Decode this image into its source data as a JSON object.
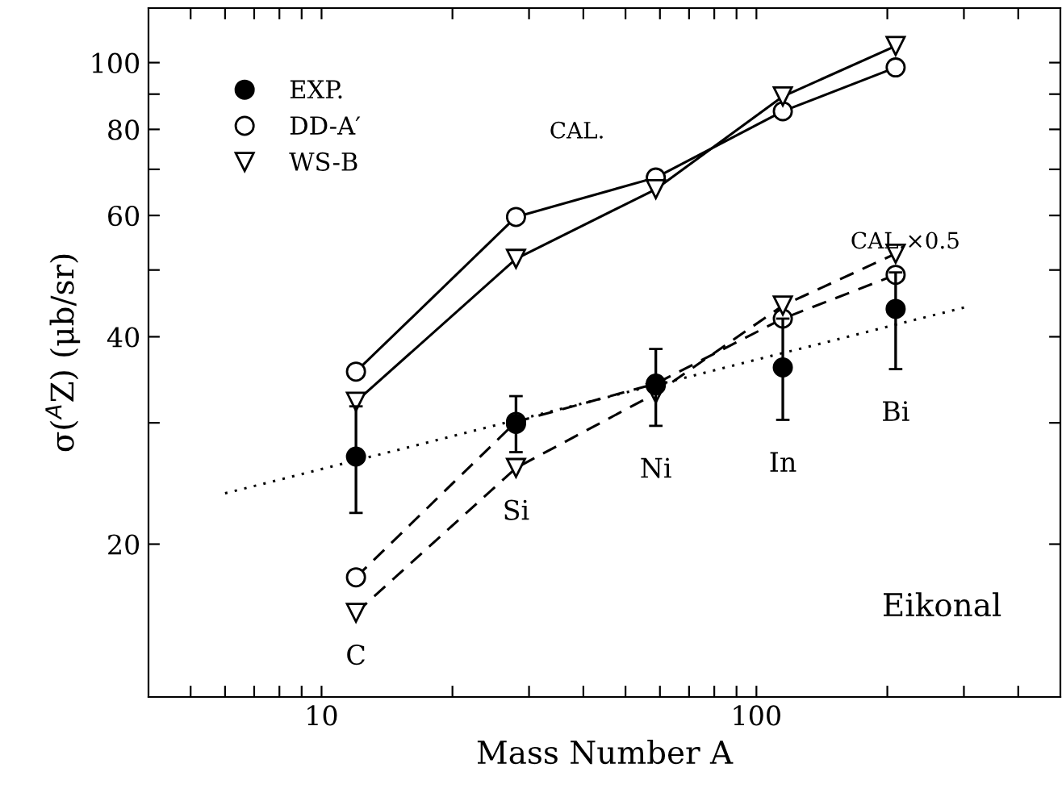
{
  "chart_data": {
    "type": "scatter",
    "xlabel": "Mass Number A",
    "ylabel": "σ($^{A}$Z) (μb/sr)",
    "log": "xy",
    "grid": false,
    "legend": "top left",
    "xlim": [
      4,
      500
    ],
    "ylim": [
      12,
      120
    ],
    "xticks": [
      {
        "value": 5,
        "label": null
      },
      {
        "value": 6,
        "label": null
      },
      {
        "value": 7,
        "label": null
      },
      {
        "value": 8,
        "label": null
      },
      {
        "value": 9,
        "label": null
      },
      10,
      {
        "value": 20,
        "label": null
      },
      {
        "value": 30,
        "label": null
      },
      {
        "value": 40,
        "label": null
      },
      {
        "value": 50,
        "label": null
      },
      {
        "value": 60,
        "label": null
      },
      {
        "value": 70,
        "label": null
      },
      {
        "value": 80,
        "label": null
      },
      {
        "value": 90,
        "label": null
      },
      100,
      {
        "value": 200,
        "label": null
      },
      {
        "value": 300,
        "label": null
      },
      {
        "value": 400,
        "label": null
      }
    ],
    "yticks": [
      20,
      {
        "value": 30,
        "label": null
      },
      40,
      {
        "value": 50,
        "label": null
      },
      60,
      {
        "value": 70,
        "label": null
      },
      80,
      {
        "value": 90,
        "label": null
      },
      100
    ],
    "x": [
      12,
      28,
      58.7,
      115,
      209
    ],
    "series": [
      {
        "name": "EXP.",
        "marker": "circle",
        "color": "#000000",
        "values": [
          26.8,
          29.9,
          34.0,
          36.1,
          43.9
        ],
        "errors": [
          [
            22.2,
            31.7
          ],
          [
            27.2,
            32.8
          ],
          [
            29.7,
            38.4
          ],
          [
            30.3,
            42.5
          ],
          [
            35.9,
            49.6
          ]
        ]
      },
      {
        "name": "DD-A′",
        "type": "line",
        "marker": "circle",
        "line_style": "solid",
        "color": "#000000",
        "values": [
          35.6,
          59.7,
          68.1,
          85.0,
          98.4
        ]
      },
      {
        "name": "WS-B",
        "type": "line",
        "marker": "triangle",
        "line_style": "solid",
        "color": "#000000",
        "values": [
          32.2,
          51.9,
          65.5,
          89.3,
          105.7
        ]
      },
      {
        "type": "line",
        "marker": "circle",
        "line_style": "dashed",
        "color": "#000000",
        "values": [
          17.9,
          30.1,
          34.2,
          42.5,
          49.2
        ]
      },
      {
        "type": "line",
        "marker": "triangle",
        "line_style": "dashed",
        "color": "#000000",
        "values": [
          15.9,
          25.8,
          33.1,
          44.4,
          52.8
        ]
      },
      {
        "type": "line",
        "marker": "none",
        "line_style": "dotted",
        "color": "#000000",
        "x": [
          6,
          304
        ],
        "values": [
          23.7,
          44.2
        ]
      }
    ],
    "annotations": [
      "C",
      "Si",
      "Ni",
      "In",
      "Bi",
      "Eikonal",
      "CAL.",
      "CAL.×0.5"
    ]
  }
}
